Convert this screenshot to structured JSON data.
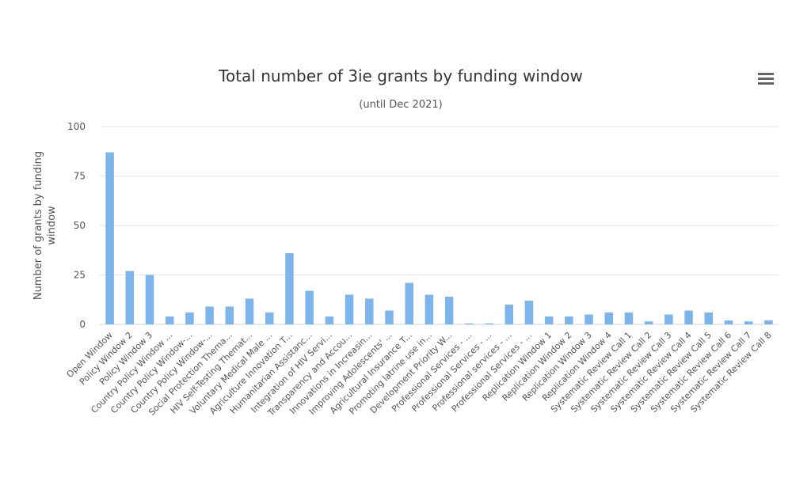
{
  "chart_data": {
    "type": "bar",
    "title": "Total number of 3ie grants by funding window",
    "subtitle": "(until Dec 2021)",
    "ylabel_lines": [
      "Number of grants by funding",
      "window"
    ],
    "xlabel": "",
    "ylim": [
      0,
      100
    ],
    "yticks": [
      0,
      25,
      50,
      75,
      100
    ],
    "grid": true,
    "legend": "none",
    "color": "#7cb5ec",
    "categories": [
      "Open Window",
      "Policy Window 2",
      "Policy Window 3",
      "Country Policy Window ...",
      "Country Policy Window-...",
      "Country Policy Window-...",
      "Social Protection Thema...",
      "HIV Self-Testing Themat...",
      "Voluntary Medical Male ...",
      "Agriculture Innovation T...",
      "Humanitarian Assistanc...",
      "Integration of HIV Servi...",
      "Transparency and Accou...",
      "Innovations in Increasin...",
      "Improving Adolescents' ...",
      "Agricultural Insurance T...",
      "Promoting latrine use in...",
      "Development Priority W...",
      "Professional Services - ...",
      "Professional Services - ...",
      "Professional services - ...",
      "Professional Services - ...",
      "Replication Window 1",
      "Replication Window 2",
      "Replication Window 3",
      "Replication Window 4",
      "Systematic Review Call 1",
      "Systematic Review Call 2",
      "Systematic Review Call 3",
      "Systematic Review Call 4",
      "Systematic Review Call 5",
      "Systematic Review Call 6",
      "Systematic Review Call 7",
      "Systematic Review Call 8"
    ],
    "values": [
      87,
      27,
      25,
      4,
      6,
      9,
      9,
      13,
      6,
      36,
      17,
      4,
      15,
      13,
      7,
      21,
      15,
      14,
      0.5,
      0.5,
      10,
      12,
      4,
      4,
      5,
      6,
      6,
      1.5,
      5,
      7,
      6,
      2,
      1.5,
      2
    ]
  },
  "menu": {
    "icon": "hamburger-menu-icon"
  }
}
